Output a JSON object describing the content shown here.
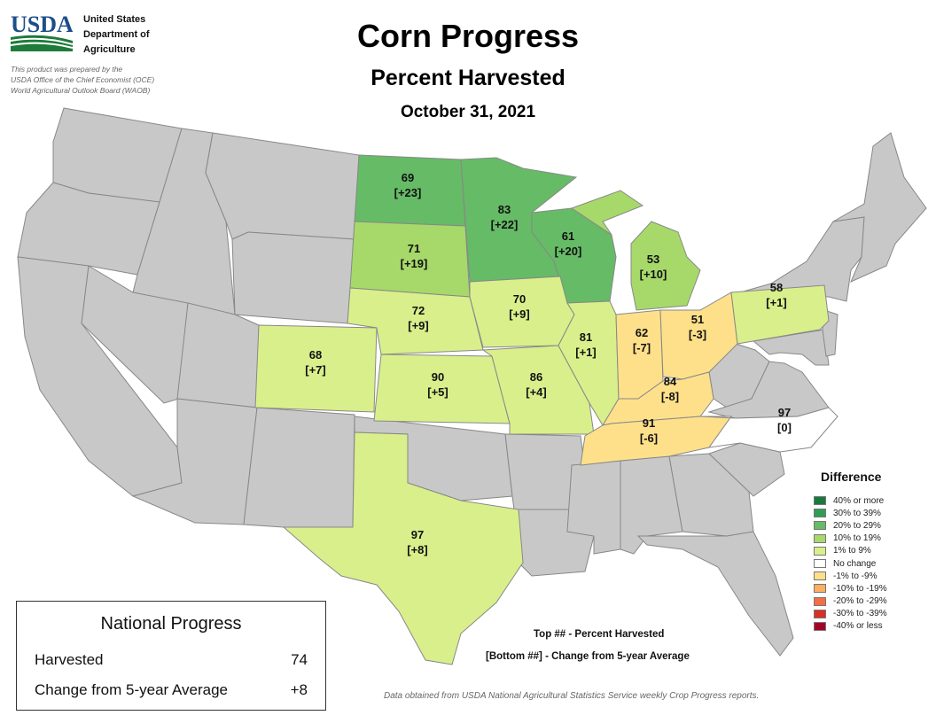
{
  "header": {
    "logo_text": "USDA",
    "agency_lines": [
      "United States",
      "Department of",
      "Agriculture"
    ],
    "prepared_lines": [
      "This product was prepared by the",
      "USDA Office of the Chief Economist (OCE)",
      "World Agricultural Outlook Board (WAOB)"
    ],
    "title": "Corn Progress",
    "subtitle": "Percent Harvested",
    "date": "October 31, 2021"
  },
  "colors": {
    "no_data": "#c8c8c8",
    "border": "#888888",
    "bucket_20_29": "#66bb66",
    "bucket_10_19": "#a6d96a",
    "bucket_1_9": "#d9ef8b",
    "no_change": "#ffffff",
    "bucket_neg_1_9": "#fee08b"
  },
  "states": [
    {
      "abbr": "ND",
      "pct": "69",
      "diff": "[+23]",
      "color": "#66bb66"
    },
    {
      "abbr": "MN",
      "pct": "83",
      "diff": "[+22]",
      "color": "#66bb66"
    },
    {
      "abbr": "WI",
      "pct": "61",
      "diff": "[+20]",
      "color": "#66bb66"
    },
    {
      "abbr": "SD",
      "pct": "71",
      "diff": "[+19]",
      "color": "#a6d96a"
    },
    {
      "abbr": "MI",
      "pct": "53",
      "diff": "[+10]",
      "color": "#a6d96a"
    },
    {
      "abbr": "PA",
      "pct": "58",
      "diff": "[+1]",
      "color": "#d9ef8b"
    },
    {
      "abbr": "NE",
      "pct": "72",
      "diff": "[+9]",
      "color": "#d9ef8b"
    },
    {
      "abbr": "IA",
      "pct": "70",
      "diff": "[+9]",
      "color": "#d9ef8b"
    },
    {
      "abbr": "IL",
      "pct": "81",
      "diff": "[+1]",
      "color": "#d9ef8b"
    },
    {
      "abbr": "IN",
      "pct": "62",
      "diff": "[-7]",
      "color": "#fee08b"
    },
    {
      "abbr": "OH",
      "pct": "51",
      "diff": "[-3]",
      "color": "#fee08b"
    },
    {
      "abbr": "CO",
      "pct": "68",
      "diff": "[+7]",
      "color": "#d9ef8b"
    },
    {
      "abbr": "KS",
      "pct": "90",
      "diff": "[+5]",
      "color": "#d9ef8b"
    },
    {
      "abbr": "MO",
      "pct": "86",
      "diff": "[+4]",
      "color": "#d9ef8b"
    },
    {
      "abbr": "KY",
      "pct": "84",
      "diff": "[-8]",
      "color": "#fee08b"
    },
    {
      "abbr": "TN",
      "pct": "91",
      "diff": "[-6]",
      "color": "#fee08b"
    },
    {
      "abbr": "NC",
      "pct": "97",
      "diff": "[0]",
      "color": "#ffffff"
    },
    {
      "abbr": "TX",
      "pct": "97",
      "diff": "[+8]",
      "color": "#d9ef8b"
    }
  ],
  "legend": {
    "title": "Difference",
    "items": [
      {
        "label": "40% or more",
        "color": "#1a7a3c"
      },
      {
        "label": "30% to 39%",
        "color": "#2e9e55"
      },
      {
        "label": "20% to 29%",
        "color": "#66bb66"
      },
      {
        "label": "10% to 19%",
        "color": "#a6d96a"
      },
      {
        "label": "1% to 9%",
        "color": "#d9ef8b"
      },
      {
        "label": "No change",
        "color": "#ffffff"
      },
      {
        "label": "-1% to -9%",
        "color": "#fee08b"
      },
      {
        "label": "-10% to -19%",
        "color": "#fdae61"
      },
      {
        "label": "-20% to -29%",
        "color": "#f46d43"
      },
      {
        "label": "-30% to -39%",
        "color": "#d73027"
      },
      {
        "label": "-40% or less",
        "color": "#a50026"
      }
    ]
  },
  "national": {
    "title": "National Progress",
    "harvested_label": "Harvested",
    "harvested_value": "74",
    "change_label": "Change from 5-year Average",
    "change_value": "+8"
  },
  "key": {
    "top": "Top ## - Percent Harvested",
    "bottom": "[Bottom ##] - Change from 5-year Average"
  },
  "source": "Data obtained from USDA National Agricultural Statistics Service weekly Crop Progress reports."
}
